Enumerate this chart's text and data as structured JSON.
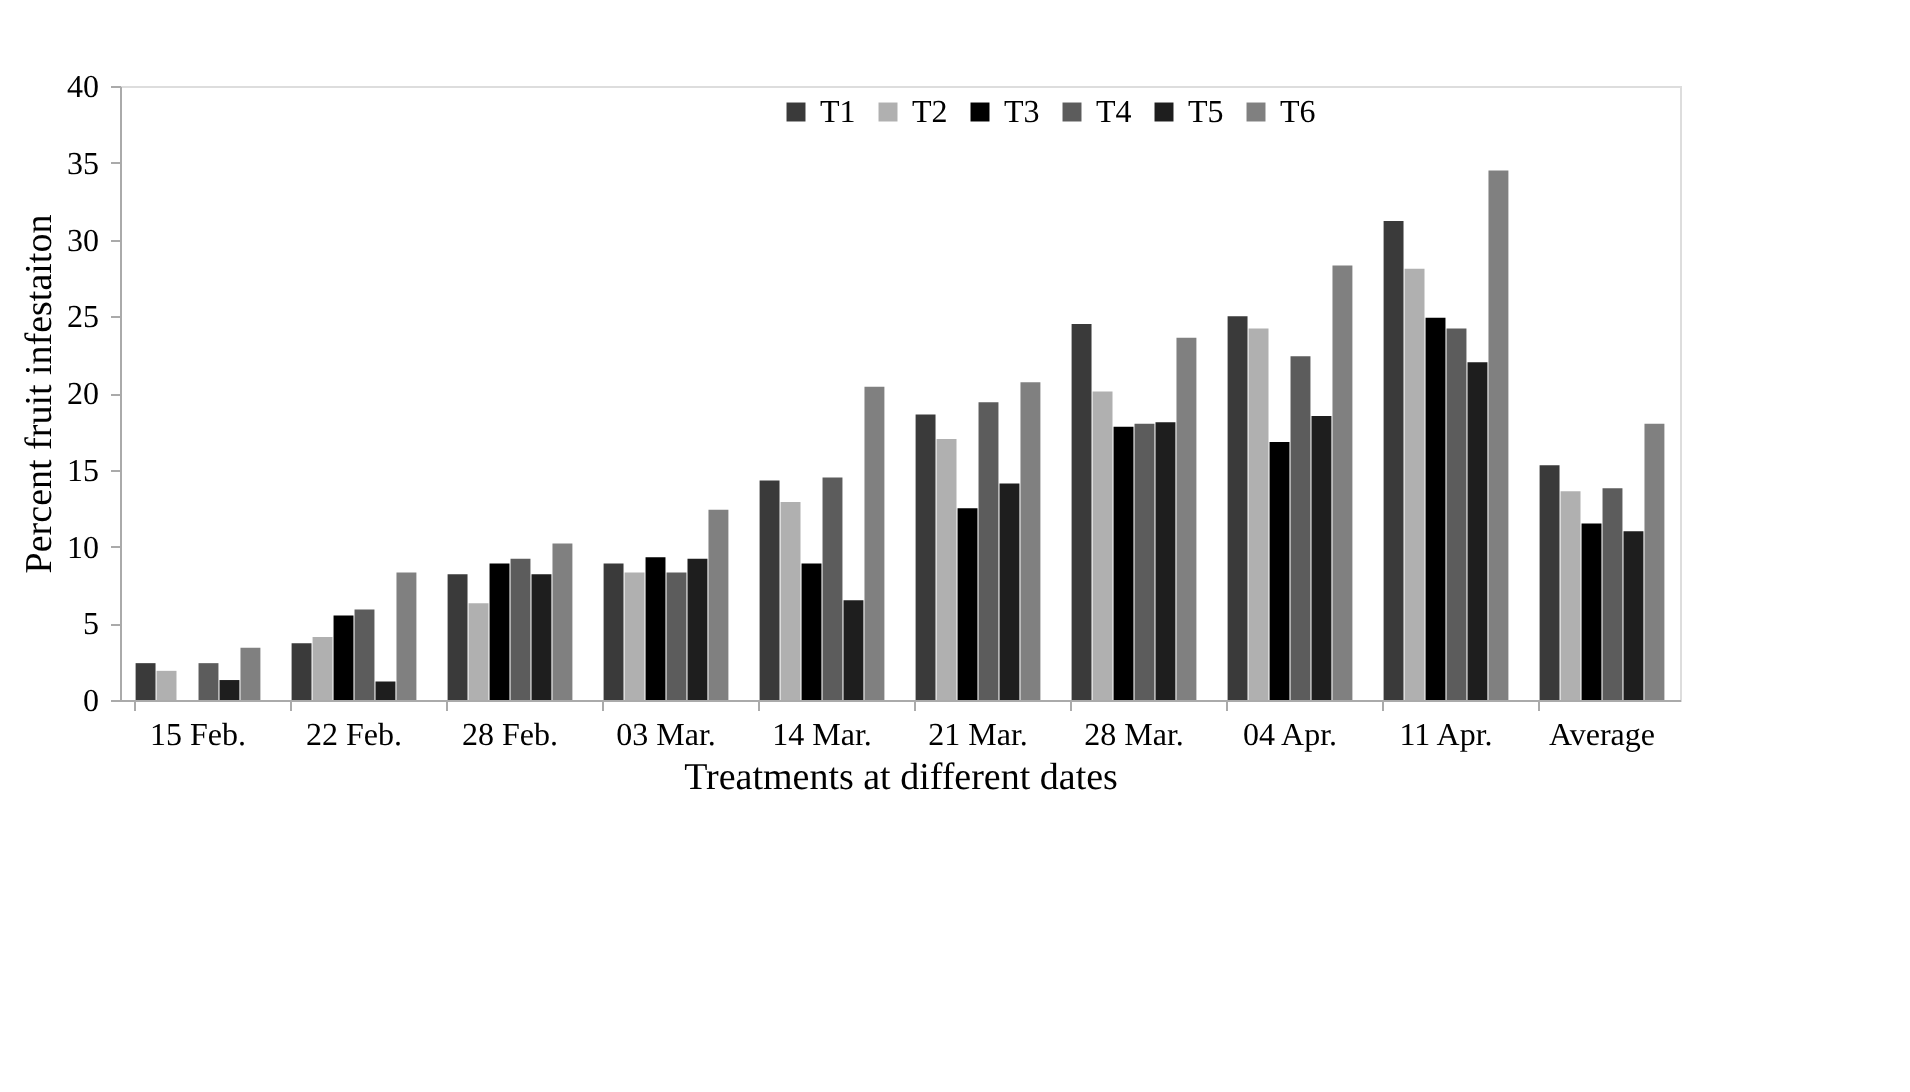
{
  "chart_data": {
    "type": "bar",
    "xlabel": "Treatments at different dates",
    "ylabel": "Percent fruit infestaiton",
    "categories": [
      "15 Feb.",
      "22 Feb.",
      "28 Feb.",
      "03 Mar.",
      "14 Mar.",
      "21 Mar.",
      "28 Mar.",
      "04 Apr.",
      "11 Apr.",
      "Average"
    ],
    "series": [
      {
        "name": "T1",
        "color": "#3a3a3a",
        "values": [
          2.4,
          3.7,
          8.2,
          8.9,
          14.3,
          18.6,
          24.5,
          25.0,
          31.2,
          15.3
        ]
      },
      {
        "name": "T2",
        "color": "#b0b0b0",
        "values": [
          1.9,
          4.1,
          6.3,
          8.3,
          12.9,
          17.0,
          20.1,
          24.2,
          28.1,
          13.6
        ]
      },
      {
        "name": "T3",
        "color": "#000000",
        "values": [
          0,
          5.5,
          8.9,
          9.3,
          8.9,
          12.5,
          17.8,
          16.8,
          24.9,
          11.5
        ]
      },
      {
        "name": "T4",
        "color": "#5c5c5c",
        "values": [
          2.4,
          5.9,
          9.2,
          8.3,
          14.5,
          19.4,
          18.0,
          22.4,
          24.2,
          13.8
        ]
      },
      {
        "name": "T5",
        "color": "#1e1e1e",
        "values": [
          1.3,
          1.2,
          8.2,
          9.2,
          6.5,
          14.1,
          18.1,
          18.5,
          22.0,
          11.0
        ]
      },
      {
        "name": "T6",
        "color": "#808080",
        "values": [
          3.4,
          8.3,
          10.2,
          12.4,
          20.4,
          20.7,
          23.6,
          28.3,
          34.5,
          18.0
        ]
      }
    ],
    "ylim": [
      0,
      40
    ],
    "yticks": [
      0,
      5,
      10,
      15,
      20,
      25,
      30,
      35,
      40
    ],
    "grid": false,
    "legend": "top"
  }
}
